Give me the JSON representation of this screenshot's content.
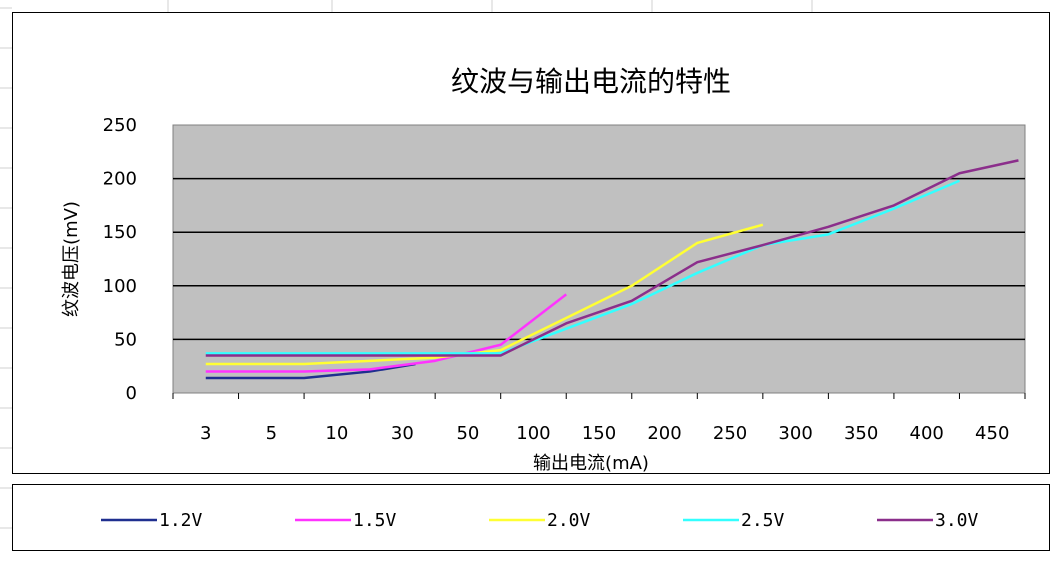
{
  "chart_data": {
    "type": "line",
    "title": "纹波与输出电流的特性",
    "xlabel": "输出电流(mA)",
    "ylabel": "纹波电压(mV)",
    "categories": [
      "3",
      "5",
      "10",
      "30",
      "50",
      "100",
      "150",
      "200",
      "250",
      "300",
      "350",
      "400",
      "450"
    ],
    "ylim": [
      0,
      250
    ],
    "yticks": [
      0,
      50,
      100,
      150,
      200,
      250
    ],
    "grid": true,
    "legend_position": "bottom",
    "series": [
      {
        "name": "1.2V",
        "color": "#1f2f8f",
        "x": [
          0,
          0.5,
          1.5,
          2.5,
          3.2
        ],
        "values": [
          14,
          14,
          14,
          20,
          27
        ]
      },
      {
        "name": "1.5V",
        "color": "#ff33ff",
        "x": [
          0,
          0.5,
          1.5,
          2.5,
          3.5,
          4.5,
          5.5
        ],
        "values": [
          20,
          20,
          20,
          22,
          30,
          45,
          92
        ]
      },
      {
        "name": "2.0V",
        "color": "#ffff33",
        "x": [
          0,
          0.5,
          1.5,
          2.5,
          3.5,
          4.5,
          5.5,
          6.5,
          7.5,
          8.5
        ],
        "values": [
          27,
          27,
          27,
          30,
          33,
          40,
          70,
          100,
          140,
          157
        ]
      },
      {
        "name": "2.5V",
        "color": "#33ffff",
        "x": [
          0,
          0.5,
          1.5,
          2.5,
          3.5,
          4.5,
          5.5,
          6.5,
          7.5,
          8.5,
          9.5,
          10.5,
          11.5
        ],
        "values": [
          37,
          37,
          37,
          37,
          37,
          37,
          60,
          83,
          112,
          138,
          148,
          172,
          198
        ]
      },
      {
        "name": "3.0V",
        "color": "#8b2e8b",
        "x": [
          0,
          0.5,
          1.5,
          2.5,
          3.5,
          4.5,
          5.5,
          6.5,
          7.5,
          8.5,
          9.5,
          10.5,
          11.5,
          12.4
        ],
        "values": [
          35,
          35,
          35,
          35,
          35,
          35,
          65,
          86,
          122,
          138,
          155,
          175,
          205,
          217
        ]
      }
    ]
  }
}
